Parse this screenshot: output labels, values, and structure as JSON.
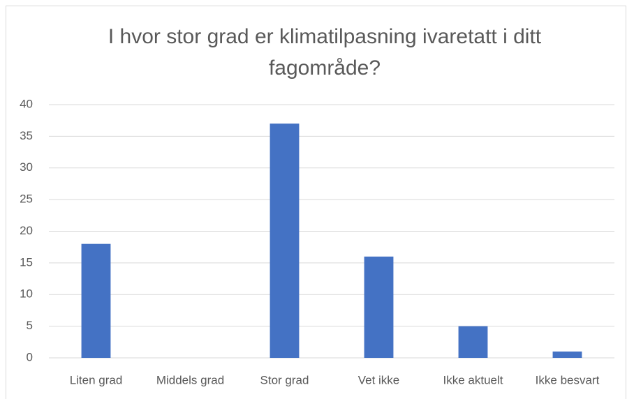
{
  "chart_data": {
    "type": "bar",
    "title": "I hvor stor grad er klimatilpasning ivaretatt i ditt fagområde?",
    "categories": [
      "Liten grad",
      "Middels grad",
      "Stor grad",
      "Vet ikke",
      "Ikke aktuelt",
      "Ikke besvart"
    ],
    "values": [
      18,
      0,
      37,
      16,
      5,
      1
    ],
    "color": "#4472c4",
    "ylim": [
      0,
      40
    ],
    "yticks": [
      0,
      5,
      10,
      15,
      20,
      25,
      30,
      35,
      40
    ],
    "grid": true
  }
}
